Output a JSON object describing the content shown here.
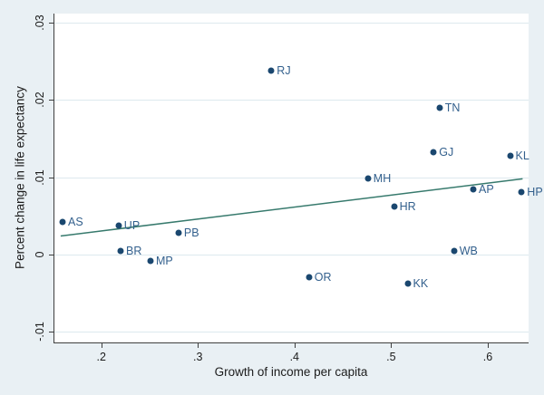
{
  "figure": {
    "background_color": "#e9f0f4",
    "plot_background_color": "#ffffff",
    "grid_color": "#dde9ee",
    "axis_color": "#3f3f3f",
    "text_color": "#1c1c1c",
    "marker_color": "#1a476f",
    "marker_label_color": "#33608d",
    "fit_line_color": "#377a6d"
  },
  "chart_data": {
    "type": "scatter",
    "title": "",
    "xlabel": "Growth of income per capita",
    "ylabel": "Percent change in life expectancy",
    "xlim": [
      0.1506,
      0.6422
    ],
    "ylim": [
      -0.01138,
      0.03118
    ],
    "grid": "horizontal-only",
    "legend": "none",
    "x_ticks": [
      {
        "value": 0.2,
        "label": ".2"
      },
      {
        "value": 0.3,
        "label": ".3"
      },
      {
        "value": 0.4,
        "label": ".4"
      },
      {
        "value": 0.5,
        "label": ".5"
      },
      {
        "value": 0.6,
        "label": ".6"
      }
    ],
    "y_ticks": [
      {
        "value": -0.01,
        "label": "-.01"
      },
      {
        "value": 0,
        "label": "0"
      },
      {
        "value": 0.01,
        "label": ".01"
      },
      {
        "value": 0.02,
        "label": ".02"
      },
      {
        "value": 0.03,
        "label": ".03"
      }
    ],
    "points": [
      {
        "label": "AS",
        "x": 0.16,
        "y": 0.0042
      },
      {
        "label": "UP",
        "x": 0.218,
        "y": 0.0038
      },
      {
        "label": "PB",
        "x": 0.28,
        "y": 0.0028
      },
      {
        "label": "BR",
        "x": 0.22,
        "y": 0.0005
      },
      {
        "label": "MP",
        "x": 0.251,
        "y": -0.0008
      },
      {
        "label": "RJ",
        "x": 0.376,
        "y": 0.0238
      },
      {
        "label": "OR",
        "x": 0.415,
        "y": -0.0029
      },
      {
        "label": "MH",
        "x": 0.476,
        "y": 0.0099
      },
      {
        "label": "HR",
        "x": 0.503,
        "y": 0.0062
      },
      {
        "label": "KK",
        "x": 0.517,
        "y": -0.0037
      },
      {
        "label": "GJ",
        "x": 0.544,
        "y": 0.0132
      },
      {
        "label": "TN",
        "x": 0.55,
        "y": 0.019
      },
      {
        "label": "WB",
        "x": 0.565,
        "y": 0.0005
      },
      {
        "label": "AP",
        "x": 0.585,
        "y": 0.0084
      },
      {
        "label": "KL",
        "x": 0.623,
        "y": 0.0128
      },
      {
        "label": "HP",
        "x": 0.635,
        "y": 0.0081
      }
    ],
    "fit_line": {
      "x1": 0.158,
      "y1": 0.0024,
      "x2": 0.636,
      "y2": 0.0098
    }
  }
}
